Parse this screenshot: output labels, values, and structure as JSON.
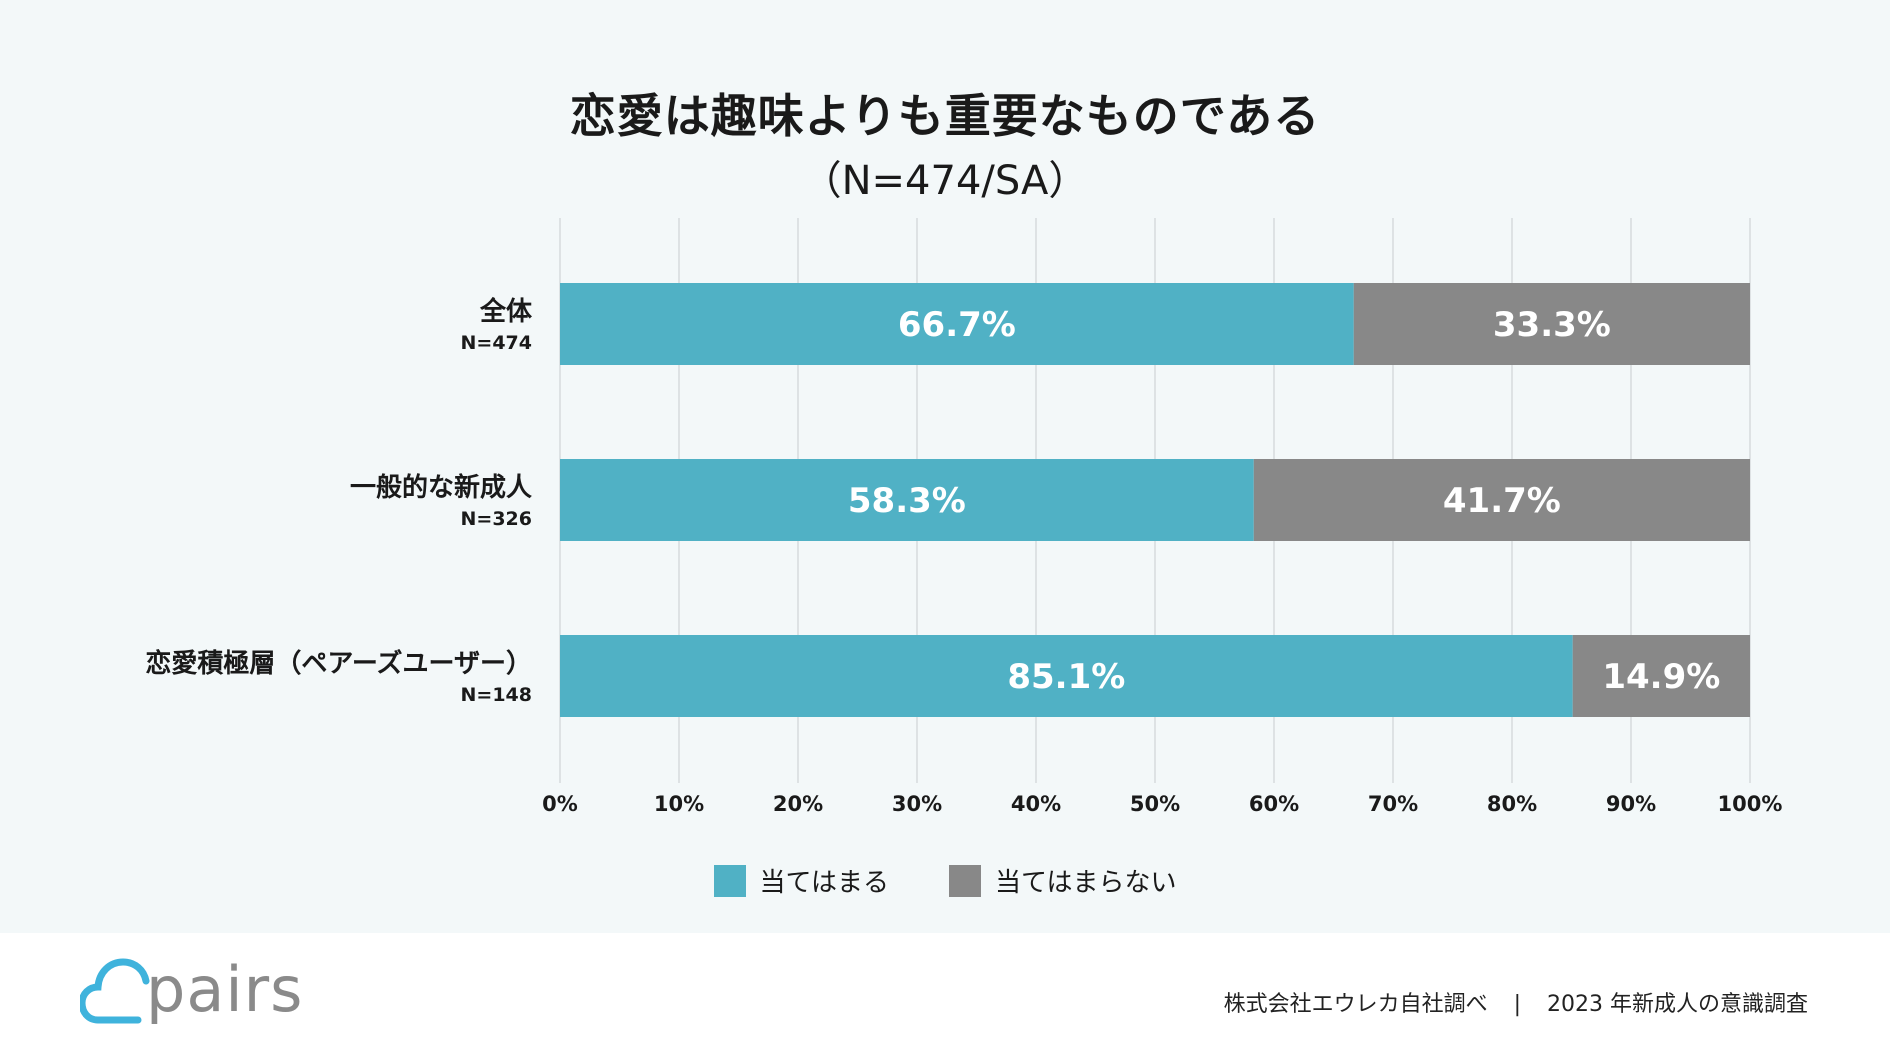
{
  "chart_data": {
    "type": "bar",
    "orientation": "horizontal",
    "stacked": true,
    "title": "恋愛は趣味よりも重要なものである",
    "subtitle": "（N=474/SA）",
    "categories": [
      "全体",
      "一般的な新成人",
      "恋愛積極層（ペアーズユーザー）"
    ],
    "category_n": [
      "N=474",
      "N=326",
      "N=148"
    ],
    "series": [
      {
        "name": "当てはまる",
        "color": "#50b1c5",
        "values": [
          66.7,
          58.3,
          85.1
        ],
        "labels": [
          "66.7%",
          "58.3%",
          "85.1%"
        ]
      },
      {
        "name": "当てはまらない",
        "color": "#888888",
        "values": [
          33.3,
          41.7,
          14.9
        ],
        "labels": [
          "33.3%",
          "41.7%",
          "14.9%"
        ]
      }
    ],
    "xlim": [
      0,
      100
    ],
    "xticks": [
      "0%",
      "10%",
      "20%",
      "30%",
      "40%",
      "50%",
      "60%",
      "70%",
      "80%",
      "90%",
      "100%"
    ],
    "grid": true,
    "legend_position": "bottom"
  },
  "brand": {
    "logo_text": "pairs",
    "accent": "#3fb3dc"
  },
  "footer": {
    "source": "株式会社エウレカ自社調べ",
    "separator": "|",
    "survey": "2023 年新成人の意識調査"
  }
}
